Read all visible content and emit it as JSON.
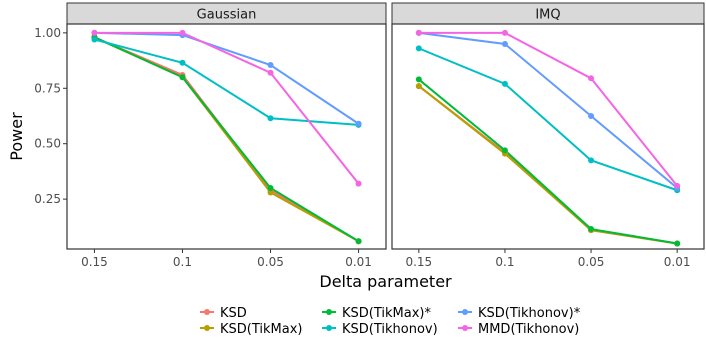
{
  "chart_data": {
    "type": "line",
    "xlabel": "Delta parameter",
    "ylabel": "Power",
    "categories": [
      "0.15",
      "0.1",
      "0.05",
      "0.01"
    ],
    "yticks": [
      0.25,
      0.5,
      0.75,
      1.0
    ],
    "ytick_labels": [
      "0.25",
      "0.50",
      "0.75",
      "1.00"
    ],
    "ylim": [
      0.025,
      1.04
    ],
    "grid": false,
    "legend_position": "bottom",
    "panels": [
      {
        "title": "Gaussian",
        "series": [
          {
            "name": "KSD",
            "color": "#F8766D",
            "values": [
              0.98,
              0.81,
              0.29,
              0.06
            ]
          },
          {
            "name": "KSD(TikMax)",
            "color": "#B79F00",
            "values": [
              0.98,
              0.8,
              0.28,
              0.06
            ]
          },
          {
            "name": "KSD(TikMax)*",
            "color": "#00BA38",
            "values": [
              0.98,
              0.8,
              0.3,
              0.06
            ]
          },
          {
            "name": "KSD(Tikhonov)",
            "color": "#00BFC4",
            "values": [
              0.97,
              0.865,
              0.615,
              0.585
            ]
          },
          {
            "name": "KSD(Tikhonov)*",
            "color": "#619CFF",
            "values": [
              1.0,
              0.99,
              0.855,
              0.59
            ]
          },
          {
            "name": "MMD(Tikhonov)",
            "color": "#F564E3",
            "values": [
              1.0,
              1.0,
              0.82,
              0.32
            ]
          }
        ]
      },
      {
        "title": "IMQ",
        "series": [
          {
            "name": "KSD",
            "color": "#F8766D",
            "values": [
              0.76,
              0.46,
              0.11,
              0.05
            ]
          },
          {
            "name": "KSD(TikMax)",
            "color": "#B79F00",
            "values": [
              0.76,
              0.455,
              0.11,
              0.05
            ]
          },
          {
            "name": "KSD(TikMax)*",
            "color": "#00BA38",
            "values": [
              0.79,
              0.47,
              0.115,
              0.05
            ]
          },
          {
            "name": "KSD(Tikhonov)",
            "color": "#00BFC4",
            "values": [
              0.93,
              0.77,
              0.425,
              0.29
            ]
          },
          {
            "name": "KSD(Tikhonov)*",
            "color": "#619CFF",
            "values": [
              1.0,
              0.95,
              0.625,
              0.3
            ]
          },
          {
            "name": "MMD(Tikhonov)",
            "color": "#F564E3",
            "values": [
              1.0,
              1.0,
              0.795,
              0.31
            ]
          }
        ]
      }
    ]
  }
}
